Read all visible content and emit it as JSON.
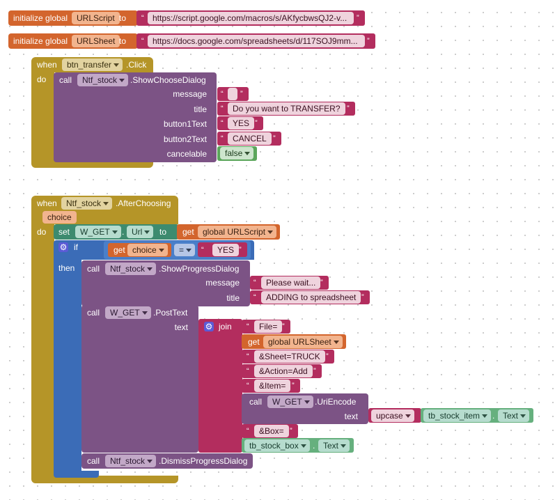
{
  "globals": [
    {
      "keyword": "initialize global",
      "name": "URLScript",
      "to": "to",
      "value": "https://script.google.com/macros/s/AKfycbwsQJ2-v..."
    },
    {
      "keyword": "initialize global",
      "name": "URLSheet",
      "to": "to",
      "value": "https://docs.google.com/spreadsheets/d/117SOJ9mm..."
    }
  ],
  "event1": {
    "when": "when",
    "component": "btn_transfer",
    "event": ".Click",
    "do": "do",
    "call": "call",
    "target": "Ntf_stock",
    "method": ".ShowChooseDialog",
    "params": [
      {
        "label": "message",
        "value": ""
      },
      {
        "label": "title",
        "value": "Do you want to TRANSFER?"
      },
      {
        "label": "button1Text",
        "value": "YES"
      },
      {
        "label": "button2Text",
        "value": "CANCEL"
      },
      {
        "label": "cancelable",
        "value": "false"
      }
    ]
  },
  "event2": {
    "when": "when",
    "component": "Ntf_stock",
    "event": ".AfterChoosing",
    "param": "choice",
    "do": "do",
    "set": {
      "keyword": "set",
      "component": "W_GET",
      "property": "Url",
      "to": "to",
      "get": "get",
      "var": "global URLScript"
    },
    "if": {
      "keyword": "if",
      "get": "get",
      "var": "choice",
      "op": "=",
      "value": "YES",
      "then": "then"
    },
    "progress": {
      "call": "call",
      "target": "Ntf_stock",
      "method": ".ShowProgressDialog",
      "message_label": "message",
      "message": "Please wait...",
      "title_label": "title",
      "title": "ADDING to spreadsheet"
    },
    "post": {
      "call": "call",
      "target": "W_GET",
      "method": ".PostText",
      "text_label": "text",
      "join": "join",
      "s1": "File=",
      "get": "get",
      "sheet_var": "global URLSheet",
      "s2": "&Sheet=TRUCK",
      "s3": "&Action=Add",
      "s4": "&Item=",
      "encode": {
        "call": "call",
        "target": "W_GET",
        "method": ".UriEncode",
        "text_label": "text",
        "upcase": "upcase",
        "textbox": "tb_stock_item",
        "prop": "Text"
      },
      "s5": "&Box=",
      "box": "tb_stock_box",
      "box_prop": "Text"
    },
    "dismiss": {
      "call": "call",
      "target": "Ntf_stock",
      "method": ".DismissProgressDialog"
    }
  }
}
